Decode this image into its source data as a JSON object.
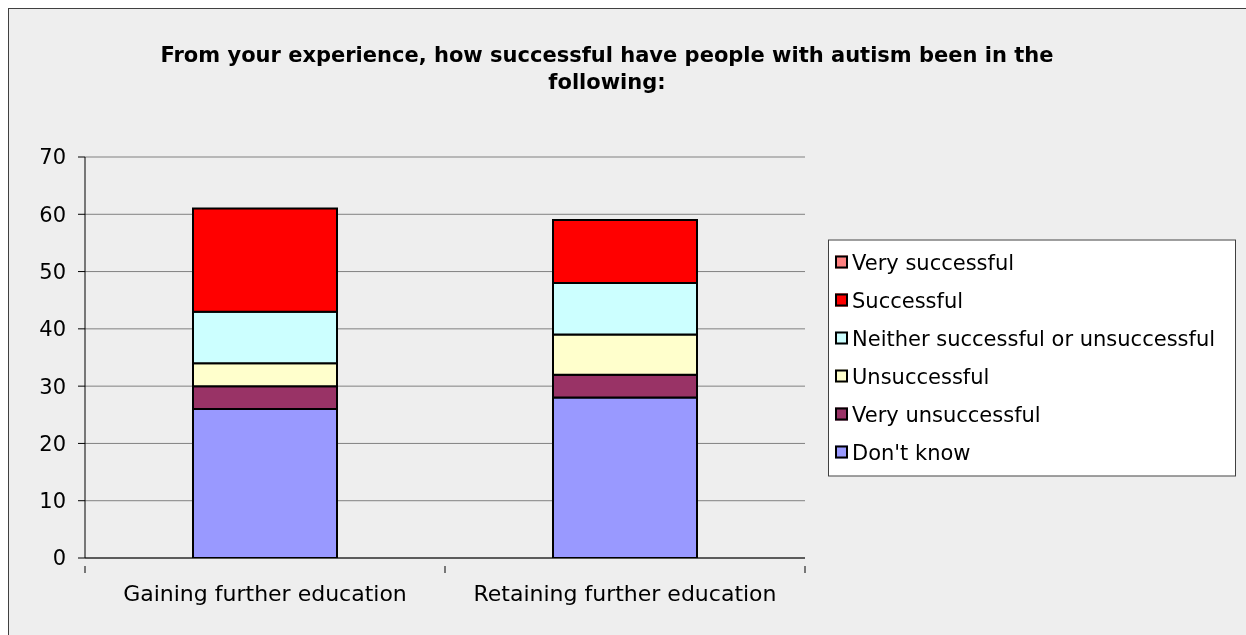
{
  "chart_data": {
    "type": "bar",
    "title": "From your experience, how successful have people with autism been in the following:",
    "categories": [
      "Gaining further education",
      "Retaining further education"
    ],
    "series": [
      {
        "name": "Don't know",
        "color": "#9999ff",
        "values": [
          26,
          28
        ]
      },
      {
        "name": "Very unsuccessful",
        "color": "#993366",
        "values": [
          4,
          4
        ]
      },
      {
        "name": "Unsuccessful",
        "color": "#ffffcc",
        "values": [
          4,
          7
        ]
      },
      {
        "name": "Neither successful or unsuccessful",
        "color": "#ccffff",
        "values": [
          9,
          9
        ]
      },
      {
        "name": "Successful",
        "color": "#ff0000",
        "values": [
          18,
          11
        ]
      },
      {
        "name": "Very successful",
        "color": "#ff8080",
        "values": [
          0,
          0
        ]
      }
    ],
    "stacked": true,
    "ylim": [
      0,
      70
    ],
    "yticks": [
      0,
      10,
      20,
      30,
      40,
      50,
      60,
      70
    ],
    "grid": "y",
    "legend": "right"
  }
}
